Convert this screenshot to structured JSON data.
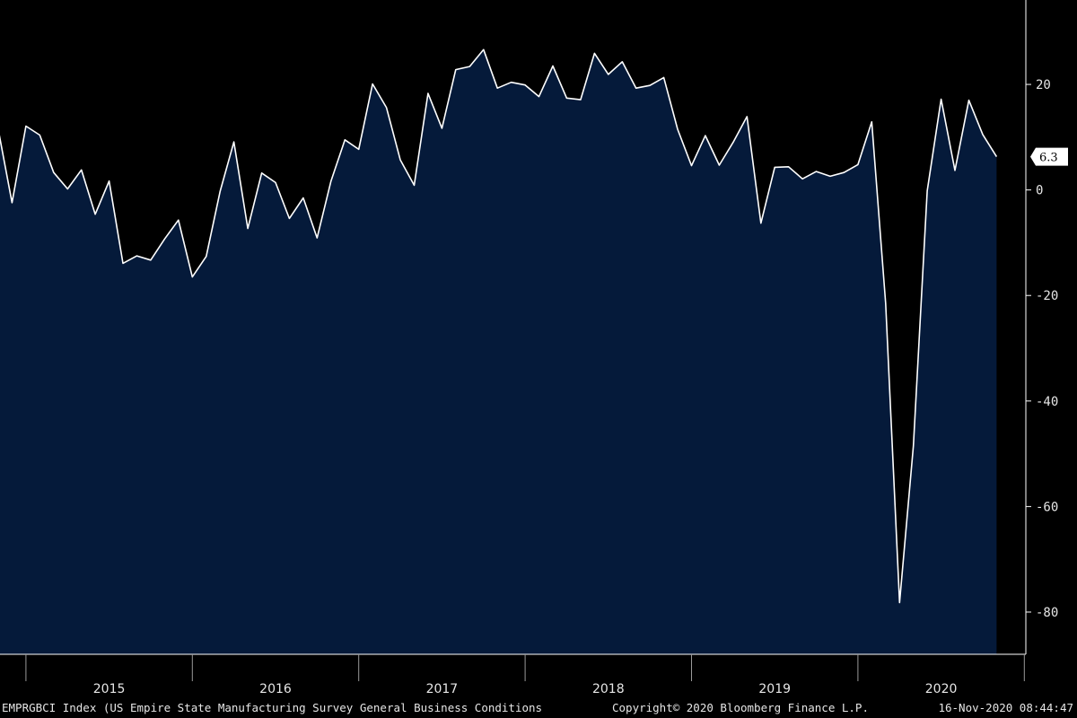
{
  "chart_data": {
    "type": "area",
    "ylim": [
      -88,
      36
    ],
    "yticks": [
      20,
      0,
      -20,
      -40,
      -60,
      -80
    ],
    "xlabels": [
      "2015",
      "2016",
      "2017",
      "2018",
      "2019",
      "2020"
    ],
    "last_value_label": "6.3",
    "grid": false,
    "colors": {
      "fill": "#051a3a",
      "line": "#ffffff",
      "background": "#000000"
    },
    "series": [
      {
        "x": [
          "2014-11",
          "2014-12",
          "2015-01",
          "2015-02",
          "2015-03",
          "2015-04",
          "2015-05",
          "2015-06",
          "2015-07",
          "2015-08",
          "2015-09",
          "2015-10",
          "2015-11",
          "2015-12",
          "2016-01",
          "2016-02",
          "2016-03",
          "2016-04",
          "2016-05",
          "2016-06",
          "2016-07",
          "2016-08",
          "2016-09",
          "2016-10",
          "2016-11",
          "2016-12",
          "2017-01",
          "2017-02",
          "2017-03",
          "2017-04",
          "2017-05",
          "2017-06",
          "2017-07",
          "2017-08",
          "2017-09",
          "2017-10",
          "2017-11",
          "2017-12",
          "2018-01",
          "2018-02",
          "2018-03",
          "2018-04",
          "2018-05",
          "2018-06",
          "2018-07",
          "2018-08",
          "2018-09",
          "2018-10",
          "2018-11",
          "2018-12",
          "2019-01",
          "2019-02",
          "2019-03",
          "2019-04",
          "2019-05",
          "2019-06",
          "2019-07",
          "2019-08",
          "2019-09",
          "2019-10",
          "2019-11",
          "2019-12",
          "2020-01",
          "2020-02",
          "2020-03",
          "2020-04",
          "2020-05",
          "2020-06",
          "2020-07",
          "2020-08",
          "2020-09",
          "2020-10",
          "2020-11"
        ],
        "y": [
          11.5,
          -2.4,
          12.1,
          10.4,
          3.3,
          0.2,
          3.8,
          -4.6,
          1.7,
          -13.9,
          -12.5,
          -13.3,
          -9.3,
          -5.7,
          -16.5,
          -12.6,
          -0.3,
          9.1,
          -7.3,
          3.2,
          1.4,
          -5.4,
          -1.5,
          -9.1,
          1.7,
          9.5,
          7.7,
          20.1,
          15.6,
          5.7,
          0.9,
          18.3,
          11.7,
          22.8,
          23.4,
          26.6,
          19.3,
          20.4,
          19.9,
          17.7,
          23.5,
          17.4,
          17.1,
          25.9,
          21.9,
          24.3,
          19.3,
          19.8,
          21.3,
          11.5,
          4.6,
          10.3,
          4.7,
          9.0,
          13.9,
          -6.3,
          4.3,
          4.4,
          2.1,
          3.5,
          2.6,
          3.3,
          4.8,
          12.9,
          -21.5,
          -78.2,
          -48.5,
          -0.2,
          17.2,
          3.7,
          17.0,
          10.5,
          6.3
        ]
      }
    ]
  },
  "footer": {
    "left": "EMPRGBCI Index (US Empire State Manufacturing Survey General Business Conditions",
    "center": "Copyright© 2020 Bloomberg Finance L.P.",
    "right": "16-Nov-2020 08:44:47"
  }
}
